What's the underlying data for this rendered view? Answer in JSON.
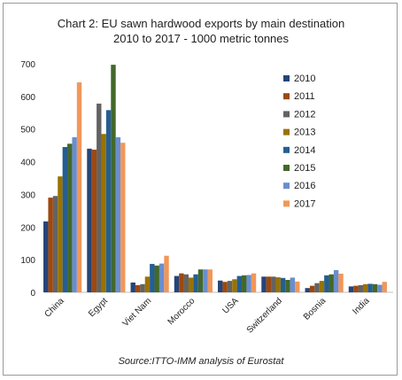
{
  "chart_data": {
    "type": "bar",
    "title_line1": "Chart 2: EU sawn hardwood exports by main destination",
    "title_line2": "2010 to 2017 - 1000 metric tonnes",
    "xlabel": "",
    "ylabel": "",
    "ylim": [
      0,
      700
    ],
    "yticks": [
      "0",
      "100",
      "200",
      "300",
      "400",
      "500",
      "600",
      "700"
    ],
    "grid": false,
    "legend_position": "right",
    "categories": [
      "China",
      "Egypt",
      "Viet Nam",
      "Morocco",
      "USA",
      "Switzerland",
      "Bosnia",
      "India"
    ],
    "series": [
      {
        "name": "2010",
        "color": "#264478",
        "values": [
          217,
          440,
          30,
          50,
          36,
          48,
          13,
          18
        ]
      },
      {
        "name": "2011",
        "color": "#9e480e",
        "values": [
          290,
          437,
          22,
          58,
          32,
          48,
          20,
          20
        ]
      },
      {
        "name": "2012",
        "color": "#636363",
        "values": [
          295,
          578,
          25,
          55,
          35,
          48,
          28,
          22
        ]
      },
      {
        "name": "2013",
        "color": "#997300",
        "values": [
          355,
          485,
          48,
          45,
          40,
          46,
          35,
          25
        ]
      },
      {
        "name": "2014",
        "color": "#255e91",
        "values": [
          445,
          558,
          87,
          55,
          50,
          44,
          52,
          26
        ]
      },
      {
        "name": "2015",
        "color": "#43682b",
        "values": [
          455,
          697,
          82,
          70,
          52,
          38,
          55,
          25
        ]
      },
      {
        "name": "2016",
        "color": "#698ed0",
        "values": [
          475,
          475,
          88,
          70,
          53,
          45,
          68,
          23
        ]
      },
      {
        "name": "2017",
        "color": "#f1975a",
        "values": [
          643,
          458,
          112,
          70,
          58,
          33,
          57,
          32
        ]
      }
    ],
    "source": "Source:ITTO-IMM analysis of Eurostat"
  }
}
